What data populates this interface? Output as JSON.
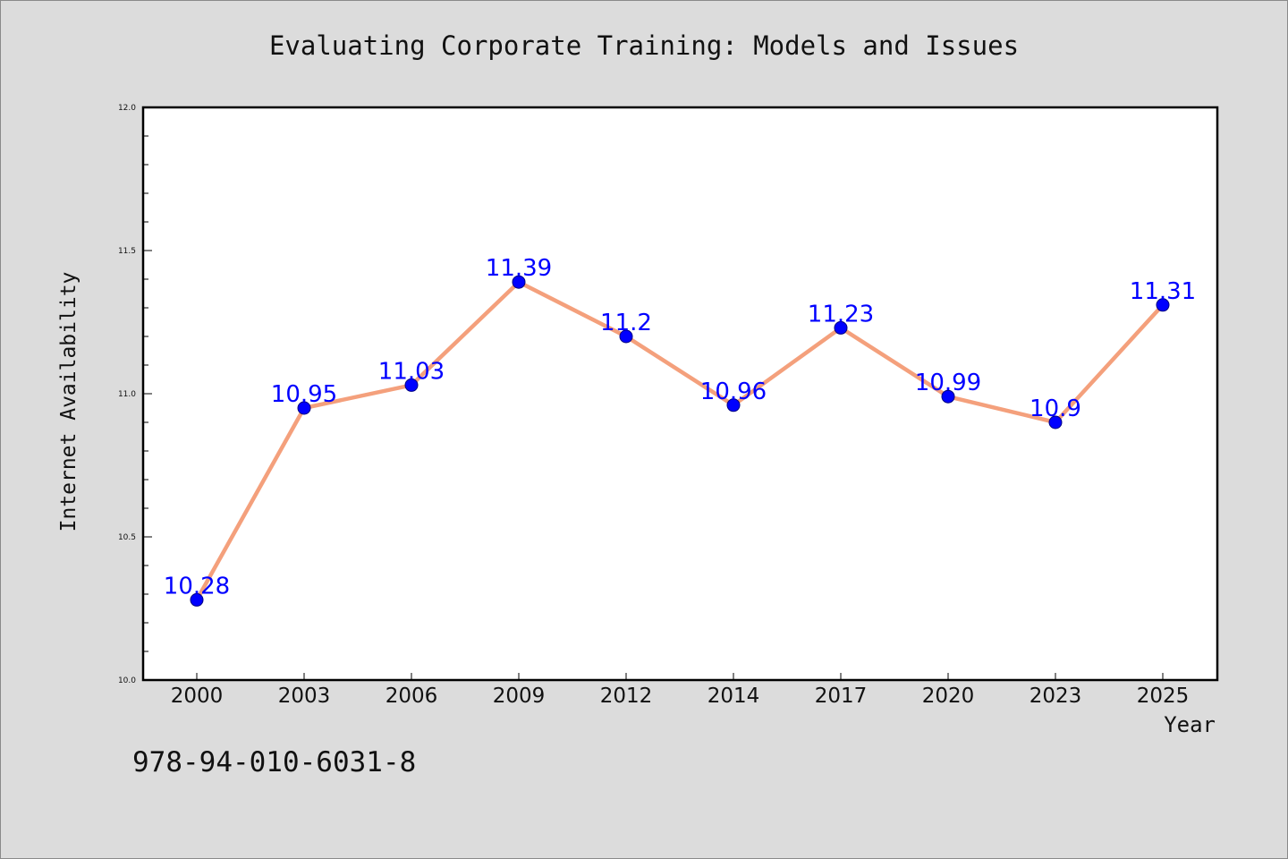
{
  "chart_data": {
    "type": "line",
    "title": "Evaluating Corporate Training: Models and Issues",
    "xlabel": "Year",
    "ylabel": "Internet Availability",
    "categories": [
      "2000",
      "2003",
      "2006",
      "2009",
      "2012",
      "2014",
      "2017",
      "2020",
      "2023",
      "2025"
    ],
    "series": [
      {
        "values": [
          10.28,
          10.95,
          11.03,
          11.39,
          11.2,
          10.96,
          11.23,
          10.99,
          10.9,
          11.31
        ],
        "labels": [
          "10.28",
          "10.95",
          "11.03",
          "11.39",
          "11.2",
          "10.96",
          "11.23",
          "10.99",
          "10.9",
          "11.31"
        ]
      }
    ],
    "ylim": [
      10.0,
      12.0
    ],
    "yticks": [
      "10.0",
      "10.5",
      "11.0",
      "11.5",
      "12.0"
    ],
    "grid": false,
    "colors": {
      "line": "#f4a07c",
      "marker": "#0000ff",
      "marker_edge": "#000080",
      "data_label": "#0000ff",
      "plot_background": "#ffffff",
      "figure_background": "#dcdcdc"
    }
  },
  "footer": {
    "isbn": "978-94-010-6031-8"
  }
}
